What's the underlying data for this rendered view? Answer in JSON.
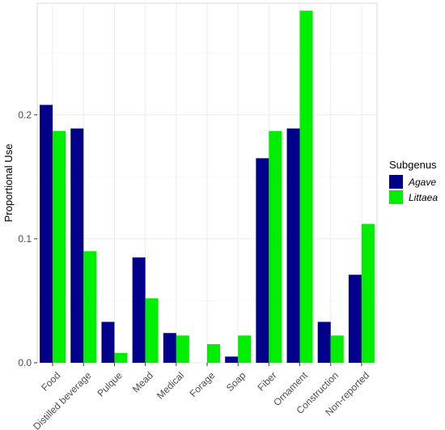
{
  "chart_data": {
    "type": "bar",
    "categories": [
      "Food",
      "Distilled beverage",
      "Pulque",
      "Mead",
      "Medical",
      "Forage",
      "Soap",
      "Fiber",
      "Ornament",
      "Construction",
      "Non-reported"
    ],
    "series": [
      {
        "name": "Agave",
        "color": "#00008B",
        "values": [
          0.208,
          0.189,
          0.033,
          0.085,
          0.024,
          0.0,
          0.005,
          0.165,
          0.189,
          0.033,
          0.071
        ]
      },
      {
        "name": "Littaea",
        "color": "#00EE00",
        "values": [
          0.187,
          0.09,
          0.008,
          0.052,
          0.022,
          0.015,
          0.022,
          0.187,
          0.284,
          0.022,
          0.112
        ]
      }
    ],
    "xlabel": "",
    "ylabel": "Proportional Use",
    "ylim": [
      0,
      0.29
    ],
    "yticks": [
      0.0,
      0.1,
      0.2
    ],
    "yticklabels": [
      "0.0",
      "0.1",
      "0.2"
    ],
    "legend": {
      "title": "Subgenus",
      "position": "right"
    },
    "grid": true
  }
}
